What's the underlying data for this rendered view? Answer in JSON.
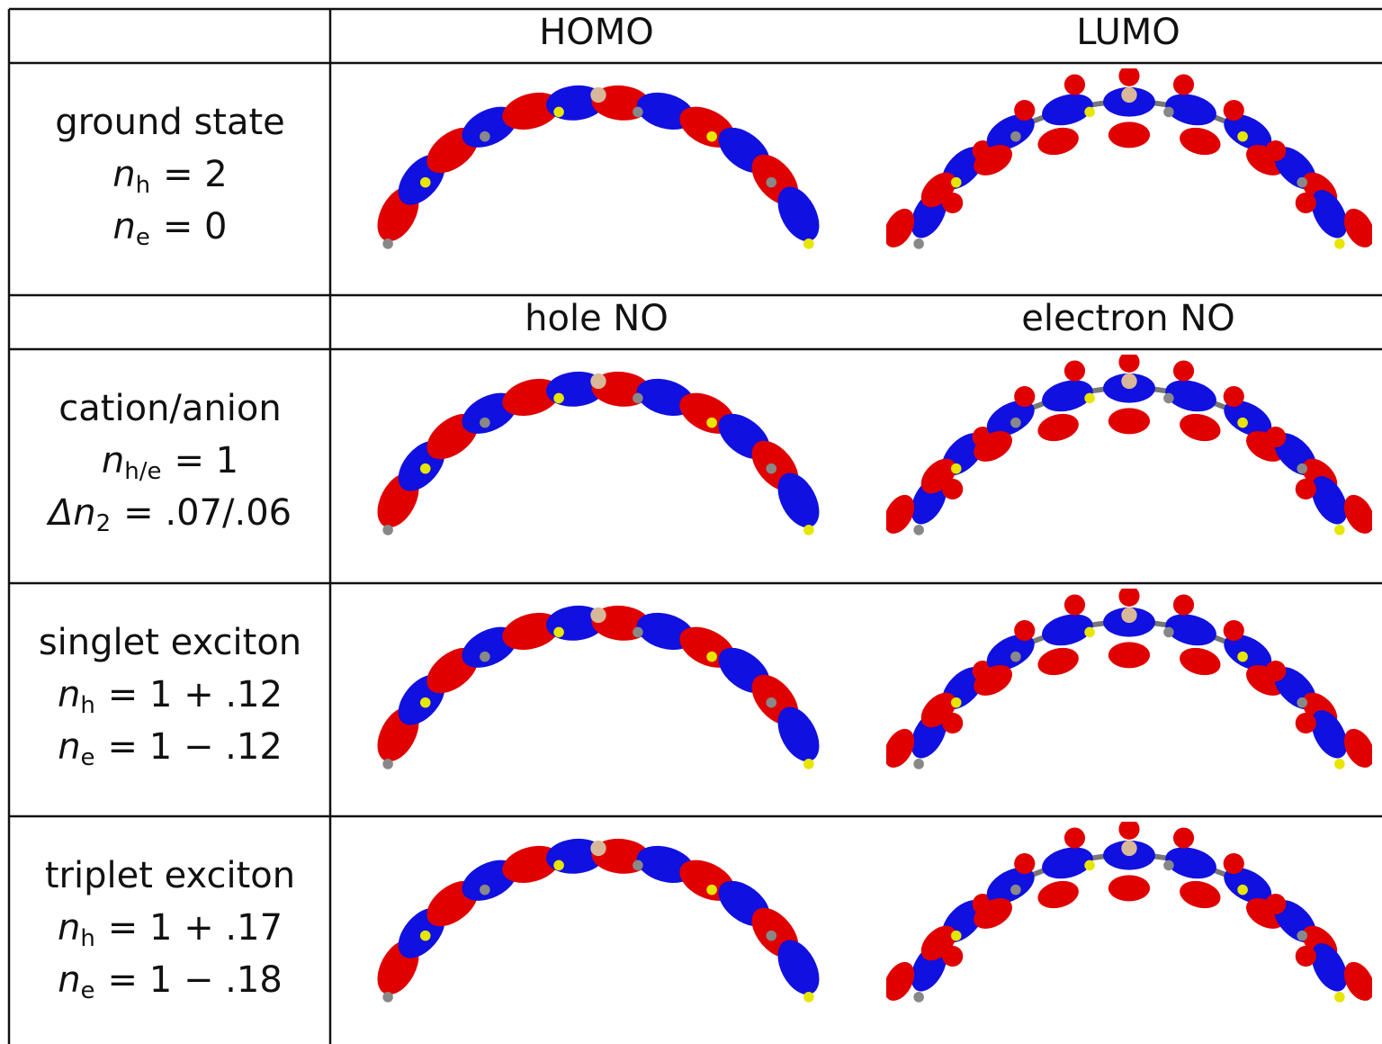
{
  "table": {
    "columns": [
      "HOMO",
      "LUMO"
    ],
    "subheader": [
      "hole NO",
      "electron NO"
    ],
    "rows": [
      {
        "lines": [
          {
            "text": "ground state"
          },
          {
            "var": "n",
            "sub": "h",
            "rest": "= 2"
          },
          {
            "var": "n",
            "sub": "e",
            "rest": "= 0"
          }
        ]
      },
      {
        "lines": [
          {
            "text": "cation/anion"
          },
          {
            "var": "n",
            "sub": "h/e",
            "rest": "= 1"
          },
          {
            "var": "Δn",
            "sub": "2",
            "rest": "= .07/.06"
          }
        ]
      },
      {
        "lines": [
          {
            "text": "singlet exciton"
          },
          {
            "var": "n",
            "sub": "h",
            "rest": "= 1 + .12"
          },
          {
            "var": "n",
            "sub": "e",
            "rest": "= 1 − .12"
          }
        ]
      },
      {
        "lines": [
          {
            "text": "triplet exciton"
          },
          {
            "var": "n",
            "sub": "h",
            "rest": "= 1 + .17"
          },
          {
            "var": "n",
            "sub": "e",
            "rest": "= 1 − .18"
          }
        ]
      }
    ]
  }
}
